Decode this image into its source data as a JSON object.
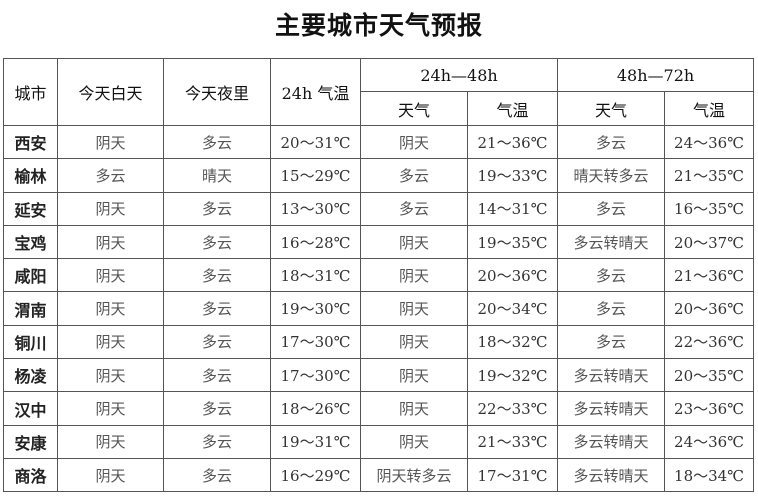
{
  "title": "主要城市天气预报",
  "headers": {
    "city": "城市",
    "today_day": "今天白天",
    "today_night": "今天夜里",
    "temp_24h": "24h 气温",
    "range_24_48": "24h—48h",
    "range_48_72": "48h—72h",
    "weather": "天气",
    "temp": "气温"
  },
  "rows": [
    [
      "西安",
      "阴天",
      "多云",
      "20～31℃",
      "阴天",
      "21～36℃",
      "多云",
      "24～36℃"
    ],
    [
      "榆林",
      "多云",
      "晴天",
      "15～29℃",
      "多云",
      "19～33℃",
      "晴天转多云",
      "21～35℃"
    ],
    [
      "延安",
      "阴天",
      "多云",
      "13～30℃",
      "多云",
      "14～31℃",
      "多云",
      "16～35℃"
    ],
    [
      "宝鸡",
      "阴天",
      "多云",
      "16～28℃",
      "阴天",
      "19～35℃",
      "多云转晴天",
      "20～37℃"
    ],
    [
      "咸阳",
      "阴天",
      "多云",
      "18～31℃",
      "阴天",
      "20～36℃",
      "多云",
      "21～36℃"
    ],
    [
      "渭南",
      "阴天",
      "多云",
      "19～30℃",
      "阴天",
      "20～34℃",
      "多云",
      "20～36℃"
    ],
    [
      "铜川",
      "阴天",
      "多云",
      "17～30℃",
      "阴天",
      "18～32℃",
      "多云",
      "22～36℃"
    ],
    [
      "杨凌",
      "阴天",
      "多云",
      "17～30℃",
      "阴天",
      "19～32℃",
      "多云转晴天",
      "20～35℃"
    ],
    [
      "汉中",
      "阴天",
      "多云",
      "18～26℃",
      "阴天",
      "22～33℃",
      "多云转晴天",
      "23～36℃"
    ],
    [
      "安康",
      "阴天",
      "多云",
      "19～31℃",
      "阴天",
      "21～33℃",
      "多云转晴天",
      "24～36℃"
    ],
    [
      "商洛",
      "阴天",
      "多云",
      "16～29℃",
      "阴天转多云",
      "17～31℃",
      "多云转晴天",
      "18～34℃"
    ]
  ]
}
